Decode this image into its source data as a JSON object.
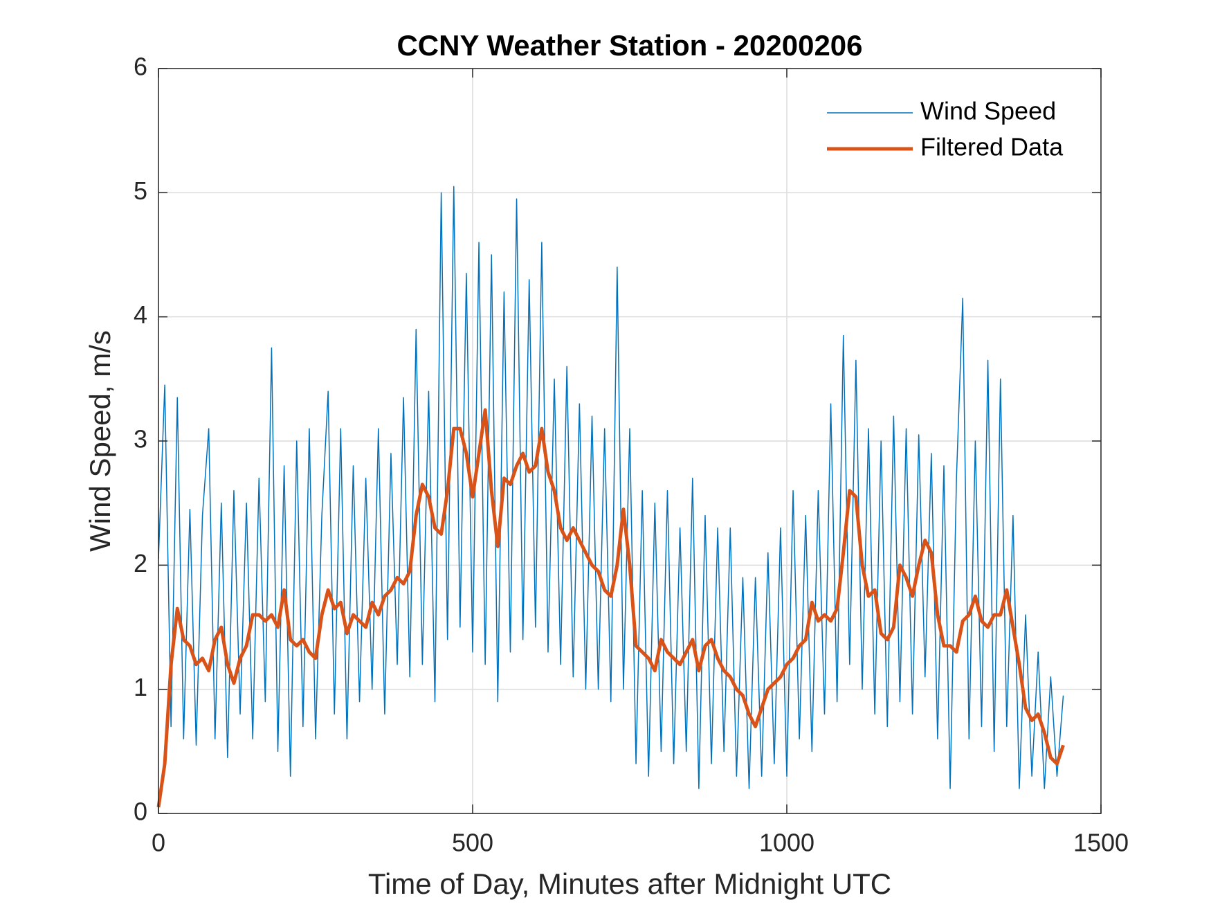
{
  "chart_data": {
    "type": "line",
    "title": "CCNY Weather Station - 20200206",
    "x_label": "Time of Day, Minutes after Midnight UTC",
    "y_label": "Wind Speed, m/s",
    "xlim": [
      0,
      1500
    ],
    "xticks": [
      0,
      500,
      1000,
      1500
    ],
    "ylim": [
      0,
      6
    ],
    "yticks": [
      0,
      1,
      2,
      3,
      4,
      5,
      6
    ],
    "grid": true,
    "legend": "northeast",
    "x": [
      0,
      10,
      20,
      30,
      40,
      50,
      60,
      70,
      80,
      90,
      100,
      110,
      120,
      130,
      140,
      150,
      160,
      170,
      180,
      190,
      200,
      210,
      220,
      230,
      240,
      250,
      260,
      270,
      280,
      290,
      300,
      310,
      320,
      330,
      340,
      350,
      360,
      370,
      380,
      390,
      400,
      410,
      420,
      430,
      440,
      450,
      460,
      470,
      480,
      490,
      500,
      510,
      520,
      530,
      540,
      550,
      560,
      570,
      580,
      590,
      600,
      610,
      620,
      630,
      640,
      650,
      660,
      670,
      680,
      690,
      700,
      710,
      720,
      730,
      740,
      750,
      760,
      770,
      780,
      790,
      800,
      810,
      820,
      830,
      840,
      850,
      860,
      870,
      880,
      890,
      900,
      910,
      920,
      930,
      940,
      950,
      960,
      970,
      980,
      990,
      1000,
      1010,
      1020,
      1030,
      1040,
      1050,
      1060,
      1070,
      1080,
      1090,
      1100,
      1110,
      1120,
      1130,
      1140,
      1150,
      1160,
      1170,
      1180,
      1190,
      1200,
      1210,
      1220,
      1230,
      1240,
      1250,
      1260,
      1270,
      1280,
      1290,
      1300,
      1310,
      1320,
      1330,
      1340,
      1350,
      1360,
      1370,
      1380,
      1390,
      1400,
      1410,
      1420,
      1430,
      1440
    ],
    "series": [
      {
        "name": "Wind Speed",
        "color": "#0072BD",
        "width": 1.5,
        "values": [
          2.05,
          3.45,
          0.7,
          3.35,
          0.6,
          2.45,
          0.55,
          2.4,
          3.1,
          0.6,
          2.5,
          0.45,
          2.6,
          0.8,
          2.5,
          0.6,
          2.7,
          0.9,
          3.75,
          0.5,
          2.8,
          0.3,
          3.0,
          0.7,
          3.1,
          0.6,
          2.4,
          3.4,
          0.8,
          3.1,
          0.6,
          2.8,
          0.9,
          2.7,
          1.0,
          3.1,
          0.8,
          2.9,
          1.2,
          3.35,
          1.1,
          3.9,
          1.2,
          3.4,
          0.9,
          5.0,
          1.4,
          5.05,
          1.5,
          4.35,
          1.3,
          4.6,
          1.2,
          4.5,
          0.9,
          4.2,
          1.3,
          4.95,
          1.4,
          4.3,
          1.5,
          4.6,
          1.3,
          3.5,
          1.2,
          3.6,
          1.1,
          3.3,
          1.0,
          3.2,
          1.0,
          3.1,
          0.9,
          4.4,
          1.0,
          3.1,
          0.4,
          2.6,
          0.3,
          2.5,
          0.5,
          2.6,
          0.4,
          2.3,
          0.5,
          2.7,
          0.2,
          2.4,
          0.4,
          2.3,
          0.5,
          2.3,
          0.3,
          1.9,
          0.2,
          1.9,
          0.3,
          2.1,
          0.4,
          2.3,
          0.3,
          2.6,
          0.6,
          2.4,
          0.5,
          2.6,
          0.8,
          3.3,
          0.9,
          3.85,
          1.2,
          3.65,
          1.0,
          3.1,
          0.8,
          3.0,
          0.7,
          3.2,
          0.9,
          3.1,
          0.8,
          3.05,
          1.1,
          2.9,
          0.6,
          2.8,
          0.2,
          2.7,
          4.15,
          0.6,
          3.0,
          0.7,
          3.65,
          0.5,
          3.5,
          0.7,
          2.4,
          0.2,
          1.6,
          0.3,
          1.3,
          0.2,
          1.1,
          0.3,
          0.95
        ]
      },
      {
        "name": "Filtered Data",
        "color": "#D95319",
        "width": 5,
        "values": [
          0.05,
          0.4,
          1.2,
          1.65,
          1.4,
          1.35,
          1.2,
          1.25,
          1.15,
          1.4,
          1.5,
          1.2,
          1.05,
          1.25,
          1.35,
          1.6,
          1.6,
          1.55,
          1.6,
          1.5,
          1.8,
          1.4,
          1.35,
          1.4,
          1.3,
          1.25,
          1.6,
          1.8,
          1.65,
          1.7,
          1.45,
          1.6,
          1.55,
          1.5,
          1.7,
          1.6,
          1.75,
          1.8,
          1.9,
          1.85,
          1.95,
          2.4,
          2.65,
          2.55,
          2.3,
          2.25,
          2.6,
          3.1,
          3.1,
          2.9,
          2.55,
          2.9,
          3.25,
          2.6,
          2.15,
          2.7,
          2.65,
          2.8,
          2.9,
          2.75,
          2.8,
          3.1,
          2.75,
          2.6,
          2.3,
          2.2,
          2.3,
          2.2,
          2.1,
          2.0,
          1.95,
          1.8,
          1.75,
          2.0,
          2.45,
          2.0,
          1.35,
          1.3,
          1.25,
          1.15,
          1.4,
          1.3,
          1.25,
          1.2,
          1.3,
          1.4,
          1.15,
          1.35,
          1.4,
          1.25,
          1.15,
          1.1,
          1.0,
          0.95,
          0.8,
          0.7,
          0.85,
          1.0,
          1.05,
          1.1,
          1.2,
          1.25,
          1.35,
          1.4,
          1.7,
          1.55,
          1.6,
          1.55,
          1.65,
          2.1,
          2.6,
          2.55,
          2.0,
          1.75,
          1.8,
          1.45,
          1.4,
          1.5,
          2.0,
          1.9,
          1.75,
          2.0,
          2.2,
          2.1,
          1.6,
          1.35,
          1.35,
          1.3,
          1.55,
          1.6,
          1.75,
          1.55,
          1.5,
          1.6,
          1.6,
          1.8,
          1.5,
          1.2,
          0.85,
          0.75,
          0.8,
          0.65,
          0.45,
          0.4,
          0.55
        ]
      }
    ]
  }
}
